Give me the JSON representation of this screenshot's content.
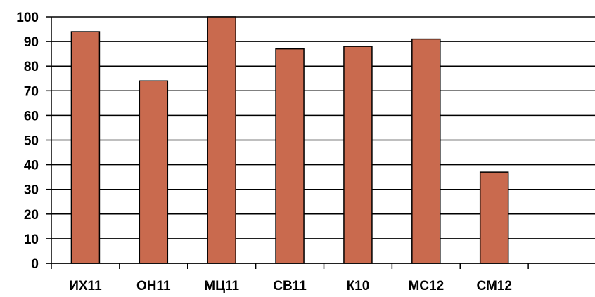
{
  "chart_data": {
    "type": "bar",
    "categories": [
      "ИХ11",
      "ОН11",
      "МЦ11",
      "СВ11",
      "К10",
      "МС12",
      "СМ12",
      ""
    ],
    "values": [
      94,
      74,
      100,
      87,
      88,
      91,
      37,
      null
    ],
    "ylim": [
      0,
      100
    ],
    "yticks": [
      "0",
      "10",
      "20",
      "30",
      "40",
      "50",
      "60",
      "70",
      "80",
      "90",
      "100"
    ],
    "grid": true,
    "legend": "none",
    "bar_color": "#c96a4e"
  }
}
